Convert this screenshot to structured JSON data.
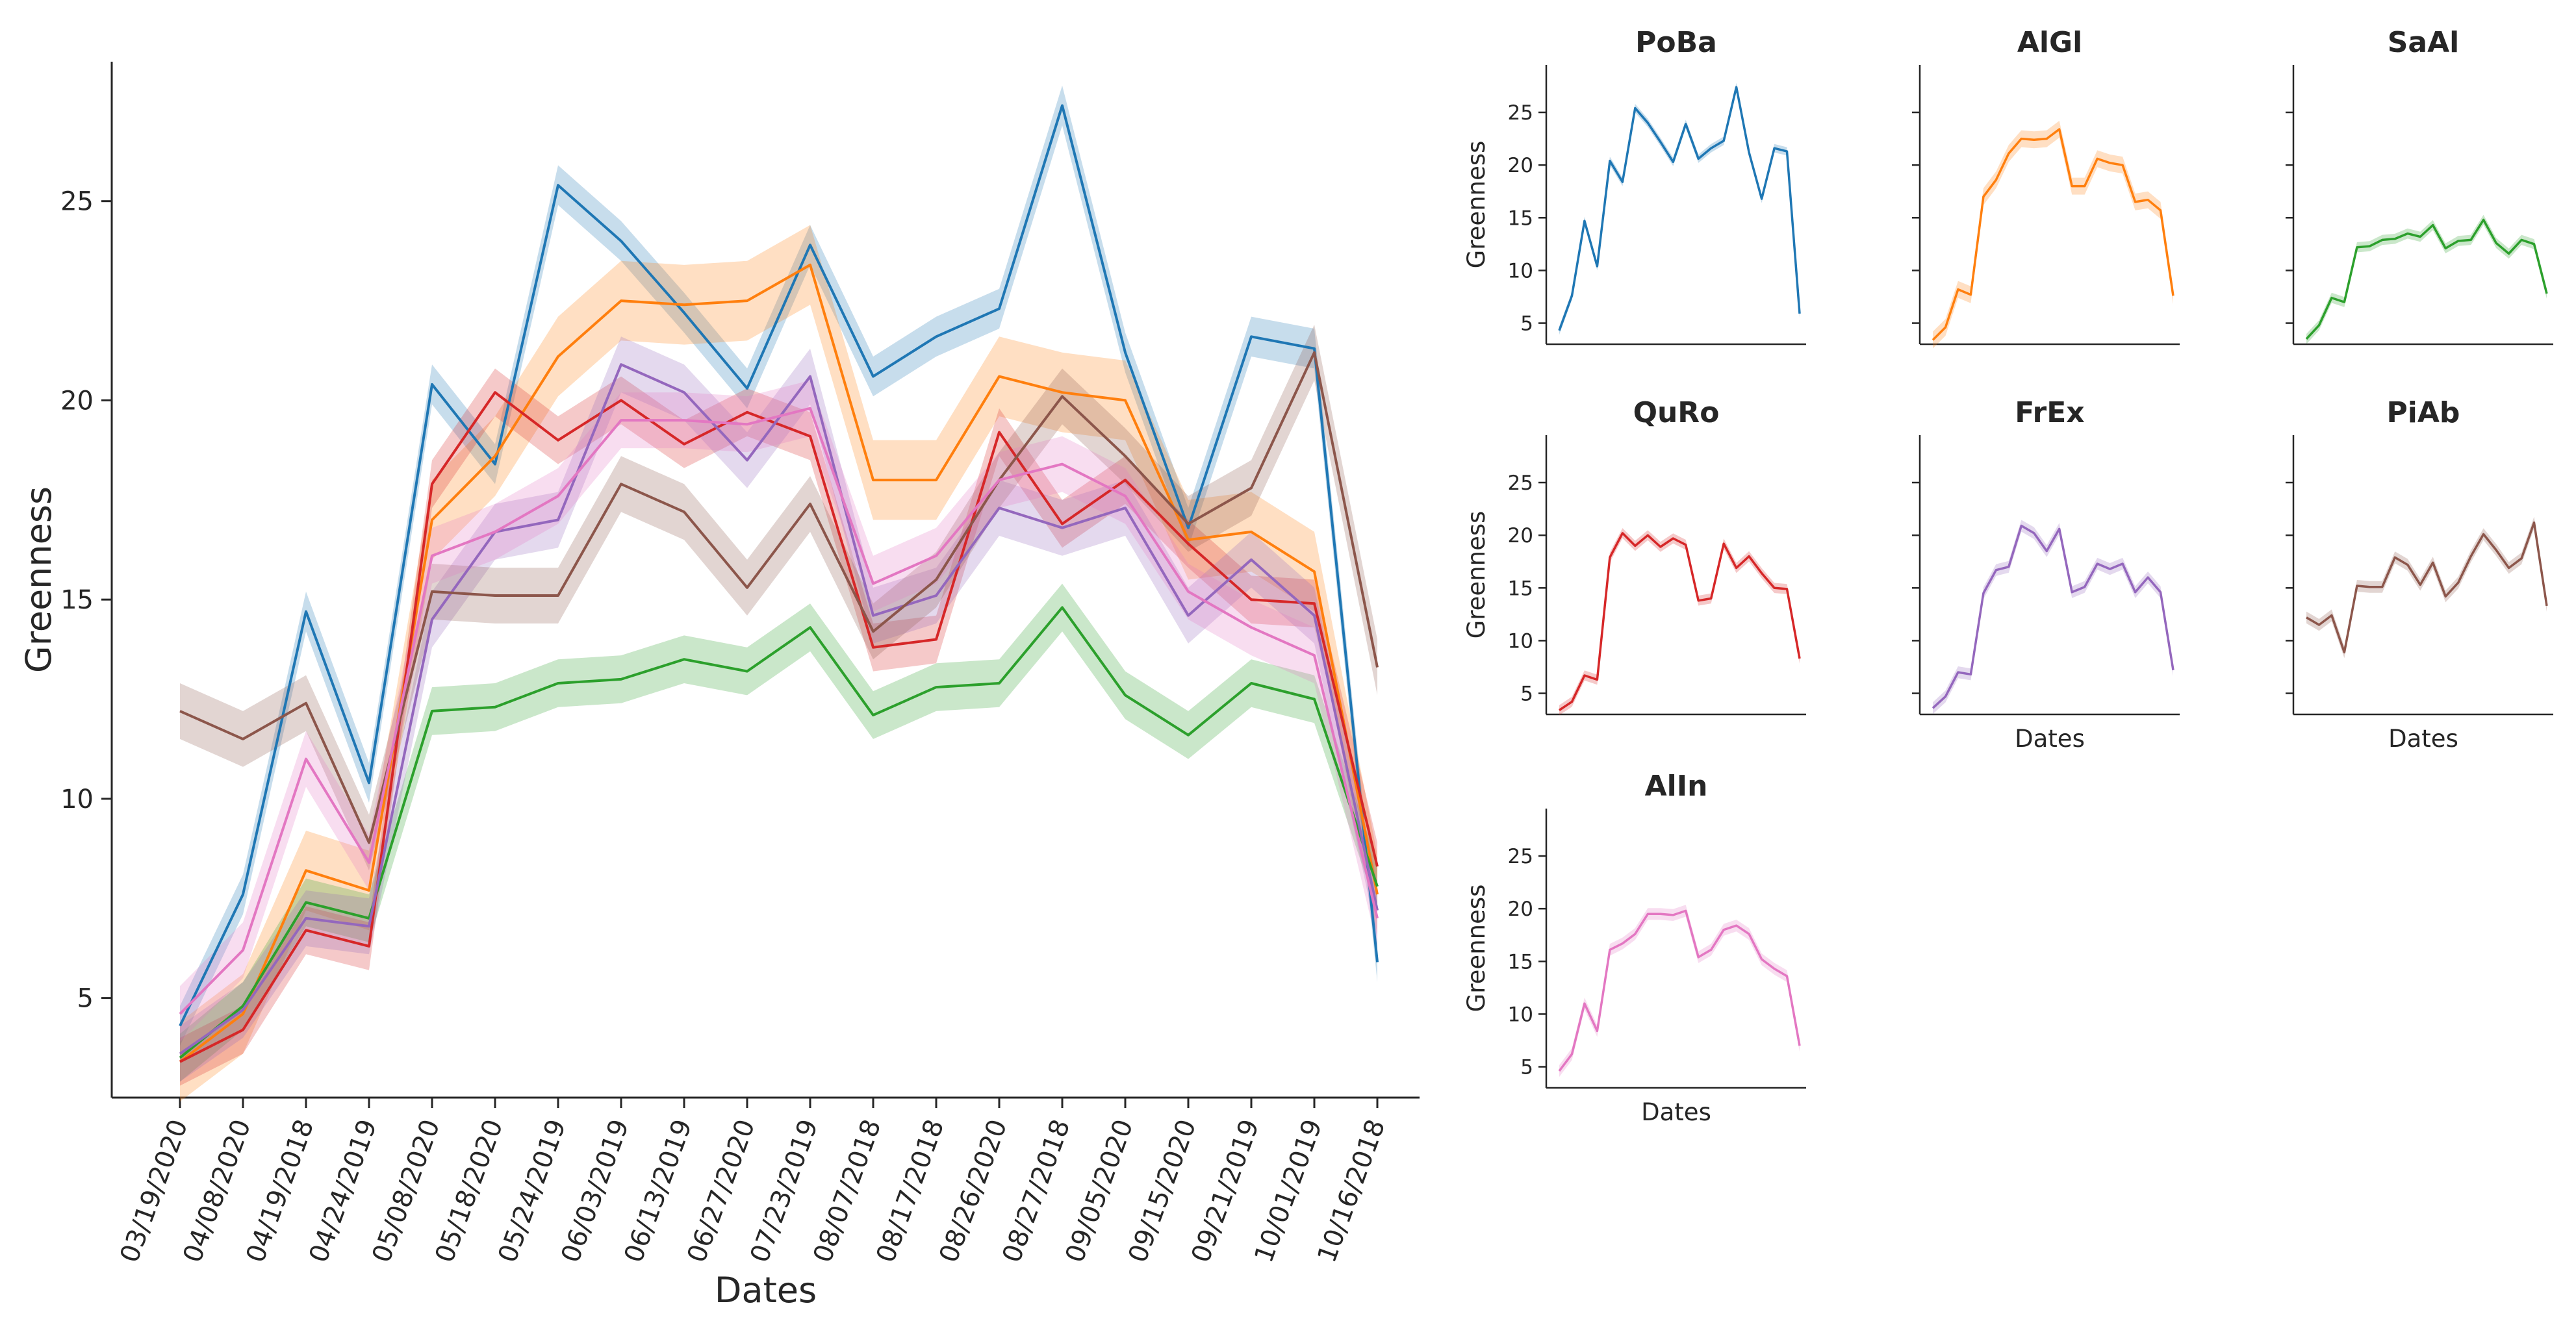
{
  "chart_data": [
    {
      "type": "line",
      "title": "",
      "xlabel": "Dates",
      "ylabel": "Greenness",
      "ylim": [
        2.5,
        28.5
      ],
      "yticks": [
        5,
        10,
        15,
        20,
        25
      ],
      "grid": false,
      "categories": [
        "03/19/2020",
        "04/08/2020",
        "04/19/2018",
        "04/24/2019",
        "05/08/2020",
        "05/18/2020",
        "05/24/2019",
        "06/03/2019",
        "06/13/2019",
        "06/27/2020",
        "07/23/2019",
        "08/07/2018",
        "08/17/2018",
        "08/26/2020",
        "08/27/2018",
        "09/05/2020",
        "09/15/2020",
        "09/21/2019",
        "10/01/2019",
        "10/16/2018"
      ],
      "series": [
        {
          "name": "PoBa",
          "color": "#1f77b4",
          "band": 0.5,
          "values": [
            4.3,
            7.6,
            14.7,
            10.4,
            20.4,
            18.4,
            25.4,
            24.0,
            22.2,
            20.3,
            23.9,
            20.6,
            21.6,
            22.3,
            27.4,
            21.2,
            16.8,
            21.6,
            21.3,
            5.9
          ]
        },
        {
          "name": "AlGl",
          "color": "#ff7f0e",
          "band": 1.0,
          "values": [
            3.4,
            4.6,
            8.2,
            7.7,
            17.0,
            18.6,
            21.1,
            22.5,
            22.4,
            22.5,
            23.4,
            18.0,
            18.0,
            20.6,
            20.2,
            20.0,
            16.5,
            16.7,
            15.7,
            7.6
          ]
        },
        {
          "name": "SaAl",
          "color": "#2ca02c",
          "band": 0.6,
          "values": [
            3.5,
            4.8,
            7.4,
            7.0,
            12.2,
            12.3,
            12.9,
            13.0,
            13.5,
            13.2,
            14.3,
            12.1,
            12.8,
            12.9,
            14.8,
            12.6,
            11.6,
            12.9,
            12.5,
            7.8
          ]
        },
        {
          "name": "QuRo",
          "color": "#d62728",
          "band": 0.6,
          "values": [
            3.4,
            4.2,
            6.7,
            6.3,
            17.9,
            20.2,
            19.0,
            20.0,
            18.9,
            19.7,
            19.1,
            13.8,
            14.0,
            19.2,
            16.9,
            18.0,
            16.4,
            15.0,
            14.9,
            8.3
          ]
        },
        {
          "name": "FrEx",
          "color": "#9467bd",
          "band": 0.7,
          "values": [
            3.6,
            4.7,
            7.0,
            6.8,
            14.5,
            16.7,
            17.0,
            20.9,
            20.2,
            18.5,
            20.6,
            14.6,
            15.1,
            17.3,
            16.8,
            17.3,
            14.6,
            16.0,
            14.6,
            7.2
          ]
        },
        {
          "name": "PiAb",
          "color": "#8c564b",
          "band": 0.7,
          "values": [
            12.2,
            11.5,
            12.4,
            8.9,
            15.2,
            15.1,
            15.1,
            17.9,
            17.2,
            15.3,
            17.4,
            14.2,
            15.5,
            18.0,
            20.1,
            18.6,
            16.9,
            17.8,
            21.2,
            13.3
          ]
        },
        {
          "name": "AlIn",
          "color": "#e377c2",
          "band": 0.7,
          "values": [
            4.6,
            6.2,
            11.0,
            8.4,
            16.1,
            16.7,
            17.6,
            19.5,
            19.5,
            19.4,
            19.8,
            15.4,
            16.1,
            18.0,
            18.4,
            17.6,
            15.2,
            14.3,
            13.6,
            7.0
          ]
        }
      ]
    },
    {
      "type": "line",
      "title": "PoBa",
      "series_ref": "PoBa",
      "ylabel": "Greenness",
      "xlabel": "",
      "ylim": [
        3,
        29.5
      ],
      "yticks": [
        5,
        10,
        15,
        20,
        25
      ]
    },
    {
      "type": "line",
      "title": "AlGl",
      "series_ref": "AlGl",
      "ylabel": "",
      "xlabel": "",
      "ylim": [
        3,
        29.5
      ],
      "yticks": [
        5,
        10,
        15,
        20,
        25
      ]
    },
    {
      "type": "line",
      "title": "SaAl",
      "series_ref": "SaAl",
      "ylabel": "",
      "xlabel": "",
      "ylim": [
        3,
        29.5
      ],
      "yticks": [
        5,
        10,
        15,
        20,
        25
      ]
    },
    {
      "type": "line",
      "title": "QuRo",
      "series_ref": "QuRo",
      "ylabel": "Greenness",
      "xlabel": "",
      "ylim": [
        3,
        29.5
      ],
      "yticks": [
        5,
        10,
        15,
        20,
        25
      ]
    },
    {
      "type": "line",
      "title": "FrEx",
      "series_ref": "FrEx",
      "ylabel": "",
      "xlabel": "Dates",
      "ylim": [
        3,
        29.5
      ],
      "yticks": [
        5,
        10,
        15,
        20,
        25
      ]
    },
    {
      "type": "line",
      "title": "PiAb",
      "series_ref": "PiAb",
      "ylabel": "",
      "xlabel": "Dates",
      "ylim": [
        3,
        29.5
      ],
      "yticks": [
        5,
        10,
        15,
        20,
        25
      ]
    },
    {
      "type": "line",
      "title": "AlIn",
      "series_ref": "AlIn",
      "ylabel": "Greenness",
      "xlabel": "Dates",
      "ylim": [
        3,
        29.5
      ],
      "yticks": [
        5,
        10,
        15,
        20,
        25
      ]
    }
  ]
}
